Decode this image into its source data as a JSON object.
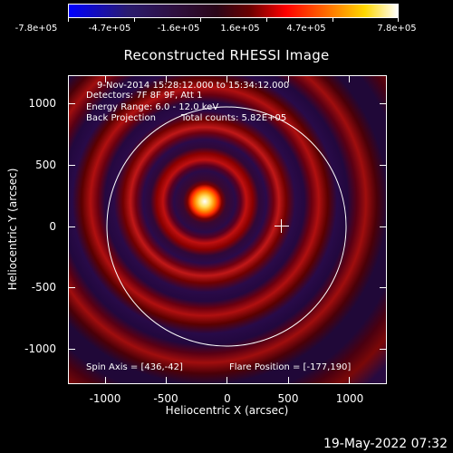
{
  "colorbar": {
    "tick_labels": [
      "-7.8e+05",
      "-4.7e+05",
      "-1.6e+05",
      "1.6e+05",
      "4.7e+05",
      "7.8e+05"
    ]
  },
  "title": "Reconstructed RHESSI Image",
  "axes": {
    "xlabel": "Heliocentric X (arcsec)",
    "ylabel": "Heliocentric Y (arcsec)",
    "x_ticks": [
      "-1000",
      "-500",
      "0",
      "500",
      "1000"
    ],
    "y_ticks": [
      "1000",
      "500",
      "0",
      "-500",
      "-1000"
    ],
    "xlim": [
      -1290,
      1290
    ],
    "ylim": [
      -1260,
      1260
    ]
  },
  "info": {
    "time_range": "9-Nov-2014 15:28:12.000 to 15:34:12.000",
    "detectors": "Detectors: 7F 8F 9F, Att 1",
    "energy_range": "Energy Range: 6.0 - 12.0 keV",
    "method": "Back Projection",
    "total_counts": "Total counts: 5.82E+05"
  },
  "footer": {
    "spin_axis": "Spin Axis = [436,-42]",
    "flare_position": "Flare Position = [-177,190]"
  },
  "timestamp": "19-May-2022 07:32",
  "overlay": {
    "solar_limb_radius_arcsec": 975,
    "spin_axis": [
      436,
      -42
    ],
    "flare_position": [
      -177,
      190
    ]
  }
}
